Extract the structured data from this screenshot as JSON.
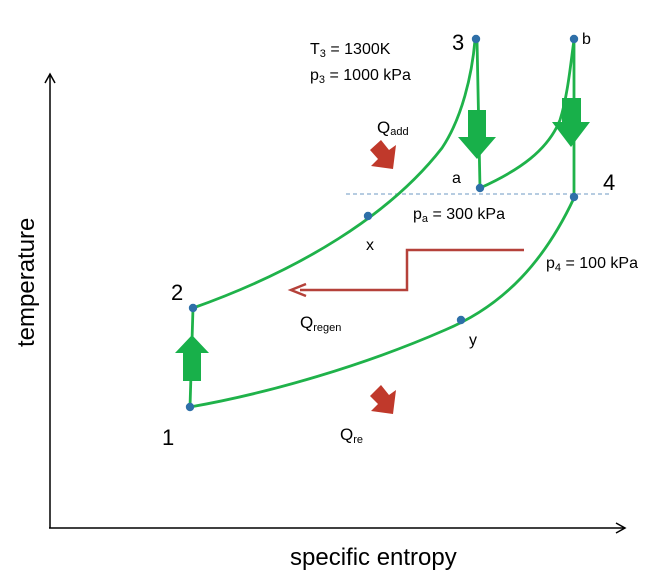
{
  "axes": {
    "x_label": "specific entropy",
    "y_label": "temperature"
  },
  "states": {
    "s1": "1",
    "s2": "2",
    "s3": "3",
    "s4": "4",
    "a": "a",
    "b": "b",
    "x": "x",
    "y": "y"
  },
  "conditions": {
    "t3_main": "T",
    "t3_sub": "3",
    "t3_value": " = 1300K",
    "p3_main": "p",
    "p3_sub": "3",
    "p3_value": " = 1000 kPa",
    "pa_main": "p",
    "pa_sub": "a",
    "pa_value": " = 300 kPa",
    "p4_main": "p",
    "p4_sub": "4",
    "p4_value": " = 100 kPa"
  },
  "heat": {
    "add_main": "Q",
    "add_sub": "add",
    "regen_main": "Q",
    "regen_sub": "regen",
    "re_main": "Q",
    "re_sub": "re"
  },
  "colors": {
    "curve": "#1fb24a",
    "arrow_green": "#18b04a",
    "arrow_red": "#c0392b",
    "regen_line": "#b5413a",
    "point": "#2e6fa8",
    "dashed": "#8aaecf"
  }
}
